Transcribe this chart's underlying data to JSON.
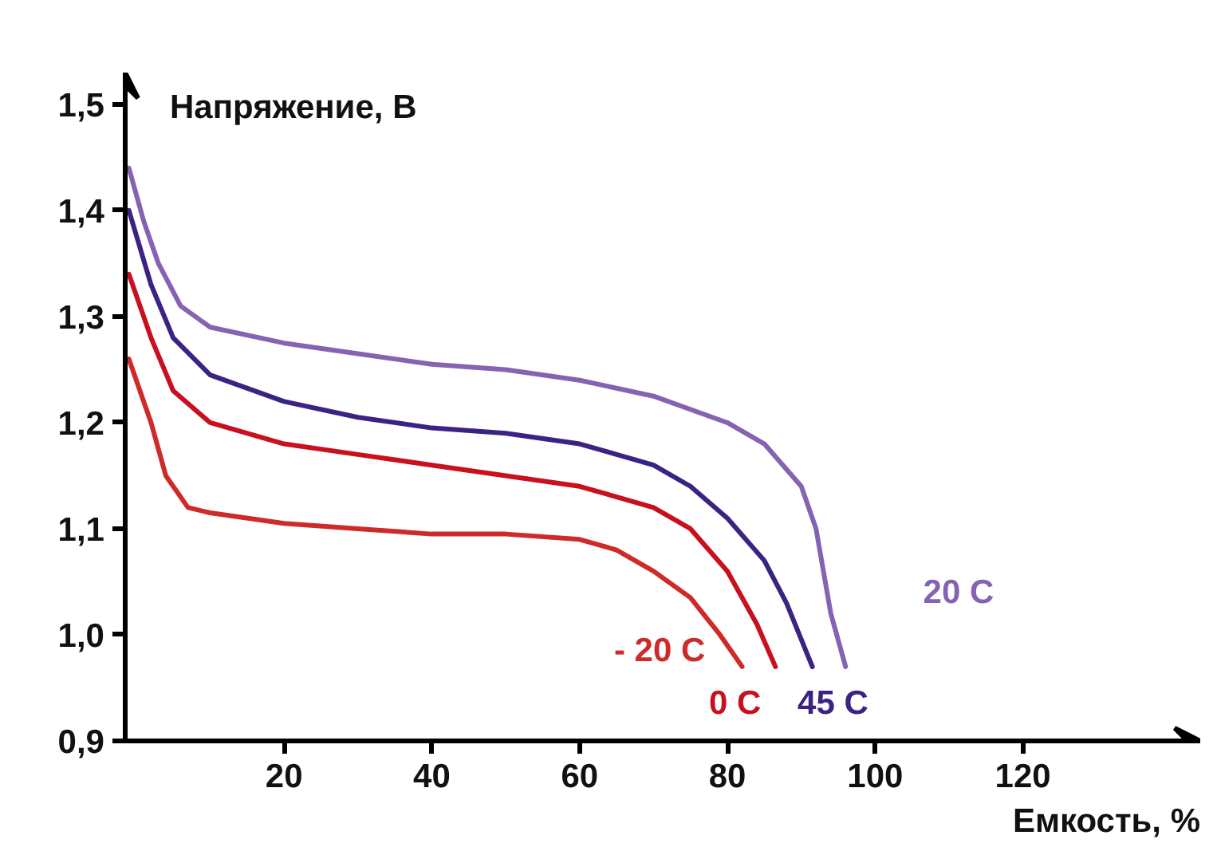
{
  "chart_data": {
    "type": "line",
    "ylabel": "Напряжение, В",
    "xlabel": "Емкость, %",
    "xlim": [
      -1.5,
      144
    ],
    "ylim": [
      0.9,
      1.53
    ],
    "xticks": [
      20,
      40,
      60,
      80,
      100,
      120
    ],
    "yticks": [
      {
        "value": 0.9,
        "label": "0,9"
      },
      {
        "value": 1.0,
        "label": "1,0"
      },
      {
        "value": 1.1,
        "label": "1,1"
      },
      {
        "value": 1.2,
        "label": "1,2"
      },
      {
        "value": 1.3,
        "label": "1,3"
      },
      {
        "value": 1.4,
        "label": "1,4"
      },
      {
        "value": 1.5,
        "label": "1,5"
      }
    ],
    "grid": false,
    "legend": false,
    "marker": "none",
    "line_style": "solid",
    "series": [
      {
        "name": "20 C",
        "color": "#8563b3",
        "x": [
          -1,
          1,
          3,
          6,
          10,
          20,
          30,
          40,
          50,
          60,
          70,
          80,
          85,
          90,
          92,
          93,
          94,
          96
        ],
        "values": [
          1.44,
          1.39,
          1.35,
          1.31,
          1.29,
          1.275,
          1.265,
          1.255,
          1.25,
          1.24,
          1.225,
          1.2,
          1.18,
          1.14,
          1.1,
          1.06,
          1.02,
          0.97
        ]
      },
      {
        "name": "45 C",
        "color": "#3b2383",
        "x": [
          -1,
          2,
          5,
          10,
          20,
          30,
          40,
          50,
          60,
          70,
          75,
          80,
          85,
          88,
          91.5
        ],
        "values": [
          1.4,
          1.33,
          1.28,
          1.245,
          1.22,
          1.205,
          1.195,
          1.19,
          1.18,
          1.16,
          1.14,
          1.11,
          1.07,
          1.03,
          0.97
        ]
      },
      {
        "name": "0 C",
        "color": "#c8101e",
        "x": [
          -1,
          2,
          5,
          10,
          20,
          30,
          40,
          50,
          60,
          70,
          75,
          80,
          84,
          86.5
        ],
        "values": [
          1.34,
          1.28,
          1.23,
          1.2,
          1.18,
          1.17,
          1.16,
          1.15,
          1.14,
          1.12,
          1.1,
          1.06,
          1.01,
          0.97
        ]
      },
      {
        "name": "- 20 C",
        "color": "#cf2a2a",
        "x": [
          -1,
          2,
          4,
          7,
          10,
          20,
          30,
          40,
          50,
          60,
          65,
          70,
          75,
          79,
          82
        ],
        "values": [
          1.26,
          1.2,
          1.15,
          1.12,
          1.115,
          1.105,
          1.1,
          1.095,
          1.095,
          1.09,
          1.08,
          1.06,
          1.035,
          1.0,
          0.97
        ]
      }
    ]
  }
}
